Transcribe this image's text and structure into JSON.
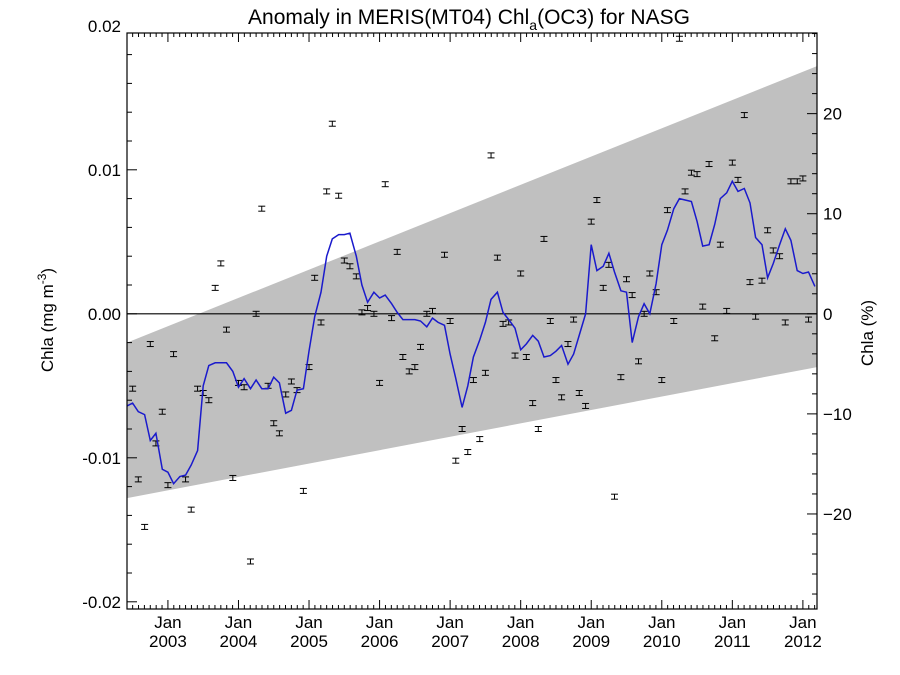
{
  "chart_data": {
    "type": "line",
    "title_main": "Anomaly in MERIS(MT04) Chl",
    "title_sub": "a",
    "title_tail": "(OC3) for NASG",
    "ylabel_left_main": "Chla (mg m",
    "ylabel_left_sup": "-3",
    "ylabel_left_close": ")",
    "ylabel_right": "Chla (%)",
    "x_ticks": [
      {
        "month": "Jan",
        "year": "2003",
        "t": 2003.0
      },
      {
        "month": "Jan",
        "year": "2004",
        "t": 2004.0
      },
      {
        "month": "Jan",
        "year": "2005",
        "t": 2005.0
      },
      {
        "month": "Jan",
        "year": "2006",
        "t": 2006.0
      },
      {
        "month": "Jan",
        "year": "2007",
        "t": 2007.0
      },
      {
        "month": "Jan",
        "year": "2008",
        "t": 2008.0
      },
      {
        "month": "Jan",
        "year": "2009",
        "t": 2009.0
      },
      {
        "month": "Jan",
        "year": "2010",
        "t": 2010.0
      },
      {
        "month": "Jan",
        "year": "2011",
        "t": 2011.0
      },
      {
        "month": "Jan",
        "year": "2012",
        "t": 2012.0
      }
    ],
    "xlim": [
      2002.42,
      2012.2
    ],
    "ylim": [
      -0.0205,
      0.0195
    ],
    "y_ticks_left": [
      {
        "label": "0.02",
        "v": 0.02
      },
      {
        "label": "0.01",
        "v": 0.01
      },
      {
        "label": "0.00",
        "v": 0.0
      },
      {
        "label": "-0.01",
        "v": -0.01
      },
      {
        "label": "-0.02",
        "v": -0.02
      }
    ],
    "y_ticks_right": [
      {
        "label": "20",
        "v": 0.0139
      },
      {
        "label": "10",
        "v": 0.00695
      },
      {
        "label": "0",
        "v": 0.0
      },
      {
        "label": "−10",
        "v": -0.00695
      },
      {
        "label": "−20",
        "v": -0.0139
      }
    ],
    "zero_line": 0.0,
    "trend_band": {
      "start": {
        "t": 2002.42,
        "upper": -0.002,
        "lower": -0.0128
      },
      "end": {
        "t": 2012.2,
        "upper": 0.0172,
        "lower": -0.0037
      },
      "color": "#c0c0c0"
    },
    "series": [
      {
        "color": "#1a1acc",
        "points": [
          [
            2002.42,
            -0.0064
          ],
          [
            2002.5,
            -0.0062
          ],
          [
            2002.58,
            -0.0068
          ],
          [
            2002.67,
            -0.007
          ],
          [
            2002.75,
            -0.0088
          ],
          [
            2002.83,
            -0.0083
          ],
          [
            2002.92,
            -0.0108
          ],
          [
            2003.0,
            -0.011
          ],
          [
            2003.08,
            -0.0118
          ],
          [
            2003.17,
            -0.0113
          ],
          [
            2003.25,
            -0.0112
          ],
          [
            2003.33,
            -0.0105
          ],
          [
            2003.42,
            -0.0095
          ],
          [
            2003.5,
            -0.005
          ],
          [
            2003.58,
            -0.0036
          ],
          [
            2003.67,
            -0.0034
          ],
          [
            2003.75,
            -0.0034
          ],
          [
            2003.83,
            -0.0034
          ],
          [
            2003.92,
            -0.004
          ],
          [
            2004.0,
            -0.0051
          ],
          [
            2004.08,
            -0.0045
          ],
          [
            2004.17,
            -0.0052
          ],
          [
            2004.25,
            -0.0046
          ],
          [
            2004.33,
            -0.0052
          ],
          [
            2004.42,
            -0.0052
          ],
          [
            2004.5,
            -0.0044
          ],
          [
            2004.58,
            -0.0048
          ],
          [
            2004.67,
            -0.0069
          ],
          [
            2004.75,
            -0.0067
          ],
          [
            2004.83,
            -0.0053
          ],
          [
            2004.92,
            -0.0052
          ],
          [
            2005.0,
            -0.0026
          ],
          [
            2005.08,
            -0.0002
          ],
          [
            2005.17,
            0.0015
          ],
          [
            2005.25,
            0.004
          ],
          [
            2005.33,
            0.0052
          ],
          [
            2005.42,
            0.0055
          ],
          [
            2005.5,
            0.0055
          ],
          [
            2005.58,
            0.0056
          ],
          [
            2005.67,
            0.004
          ],
          [
            2005.75,
            0.002
          ],
          [
            2005.83,
            0.0008
          ],
          [
            2005.92,
            0.0015
          ],
          [
            2006.0,
            0.0011
          ],
          [
            2006.08,
            0.0013
          ],
          [
            2006.17,
            0.0007
          ],
          [
            2006.25,
            0.0001
          ],
          [
            2006.33,
            -0.0004
          ],
          [
            2006.42,
            -0.0004
          ],
          [
            2006.5,
            -0.0004
          ],
          [
            2006.58,
            -0.0005
          ],
          [
            2006.67,
            -0.0009
          ],
          [
            2006.75,
            -0.0003
          ],
          [
            2006.83,
            -0.0006
          ],
          [
            2006.92,
            -0.0008
          ],
          [
            2007.0,
            -0.0028
          ],
          [
            2007.08,
            -0.0045
          ],
          [
            2007.17,
            -0.0065
          ],
          [
            2007.25,
            -0.005
          ],
          [
            2007.33,
            -0.003
          ],
          [
            2007.42,
            -0.0018
          ],
          [
            2007.5,
            -0.0006
          ],
          [
            2007.58,
            0.001
          ],
          [
            2007.67,
            0.0015
          ],
          [
            2007.75,
            0.0001
          ],
          [
            2007.83,
            -0.0004
          ],
          [
            2007.92,
            -0.001
          ],
          [
            2008.0,
            -0.0025
          ],
          [
            2008.08,
            -0.0021
          ],
          [
            2008.17,
            -0.0015
          ],
          [
            2008.25,
            -0.0019
          ],
          [
            2008.33,
            -0.003
          ],
          [
            2008.42,
            -0.0029
          ],
          [
            2008.5,
            -0.0026
          ],
          [
            2008.58,
            -0.0022
          ],
          [
            2008.67,
            -0.0035
          ],
          [
            2008.75,
            -0.0028
          ],
          [
            2008.83,
            -0.0015
          ],
          [
            2008.92,
            0.0
          ],
          [
            2009.0,
            0.0048
          ],
          [
            2009.08,
            0.003
          ],
          [
            2009.17,
            0.0033
          ],
          [
            2009.25,
            0.0042
          ],
          [
            2009.33,
            0.0029
          ],
          [
            2009.42,
            0.0016
          ],
          [
            2009.5,
            0.0015
          ],
          [
            2009.58,
            -0.002
          ],
          [
            2009.67,
            -0.0002
          ],
          [
            2009.75,
            0.0007
          ],
          [
            2009.83,
            0.0
          ],
          [
            2009.92,
            0.0021
          ],
          [
            2010.0,
            0.0048
          ],
          [
            2010.08,
            0.0058
          ],
          [
            2010.17,
            0.0073
          ],
          [
            2010.25,
            0.008
          ],
          [
            2010.33,
            0.0079
          ],
          [
            2010.42,
            0.0078
          ],
          [
            2010.5,
            0.0064
          ],
          [
            2010.58,
            0.0047
          ],
          [
            2010.67,
            0.0048
          ],
          [
            2010.75,
            0.0062
          ],
          [
            2010.83,
            0.008
          ],
          [
            2010.92,
            0.0084
          ],
          [
            2011.0,
            0.0092
          ],
          [
            2011.08,
            0.0085
          ],
          [
            2011.17,
            0.0087
          ],
          [
            2011.25,
            0.0077
          ],
          [
            2011.33,
            0.0053
          ],
          [
            2011.42,
            0.0048
          ],
          [
            2011.5,
            0.0025
          ],
          [
            2011.58,
            0.0035
          ],
          [
            2011.67,
            0.0048
          ],
          [
            2011.75,
            0.0059
          ],
          [
            2011.83,
            0.0051
          ],
          [
            2011.92,
            0.003
          ],
          [
            2012.0,
            0.0028
          ],
          [
            2012.08,
            0.0029
          ],
          [
            2012.17,
            0.0019
          ]
        ]
      }
    ],
    "error_points": [
      [
        2002.5,
        -0.0052
      ],
      [
        2002.58,
        -0.0115
      ],
      [
        2002.67,
        -0.0148
      ],
      [
        2002.75,
        -0.0021
      ],
      [
        2002.83,
        -0.009
      ],
      [
        2002.92,
        -0.0068
      ],
      [
        2003.0,
        -0.0119
      ],
      [
        2003.08,
        -0.0028
      ],
      [
        2003.25,
        -0.0115
      ],
      [
        2003.33,
        -0.0136
      ],
      [
        2003.42,
        -0.0052
      ],
      [
        2003.5,
        -0.0055
      ],
      [
        2003.58,
        -0.006
      ],
      [
        2003.67,
        0.0018
      ],
      [
        2003.75,
        0.0035
      ],
      [
        2003.83,
        -0.0011
      ],
      [
        2003.92,
        -0.0114
      ],
      [
        2004.0,
        -0.0048
      ],
      [
        2004.08,
        -0.0051
      ],
      [
        2004.17,
        -0.0172
      ],
      [
        2004.25,
        0.0
      ],
      [
        2004.33,
        0.0073
      ],
      [
        2004.42,
        -0.005
      ],
      [
        2004.5,
        -0.0076
      ],
      [
        2004.58,
        -0.0083
      ],
      [
        2004.67,
        -0.0056
      ],
      [
        2004.75,
        -0.0047
      ],
      [
        2004.83,
        -0.0053
      ],
      [
        2004.92,
        -0.0123
      ],
      [
        2005.0,
        -0.0037
      ],
      [
        2005.08,
        0.0025
      ],
      [
        2005.17,
        -0.0006
      ],
      [
        2005.25,
        0.0085
      ],
      [
        2005.33,
        0.0132
      ],
      [
        2005.42,
        0.0082
      ],
      [
        2005.5,
        0.0037
      ],
      [
        2005.58,
        0.0033
      ],
      [
        2005.67,
        0.0026
      ],
      [
        2005.75,
        0.0001
      ],
      [
        2005.83,
        0.0004
      ],
      [
        2005.92,
        0.0
      ],
      [
        2006.0,
        -0.0048
      ],
      [
        2006.08,
        0.009
      ],
      [
        2006.17,
        -0.0003
      ],
      [
        2006.25,
        0.0043
      ],
      [
        2006.33,
        -0.003
      ],
      [
        2006.42,
        -0.004
      ],
      [
        2006.5,
        -0.0037
      ],
      [
        2006.58,
        -0.0023
      ],
      [
        2006.67,
        0.0
      ],
      [
        2006.75,
        0.0002
      ],
      [
        2006.92,
        0.0041
      ],
      [
        2007.0,
        -0.0005
      ],
      [
        2007.08,
        -0.0102
      ],
      [
        2007.17,
        -0.008
      ],
      [
        2007.25,
        -0.0096
      ],
      [
        2007.33,
        -0.0046
      ],
      [
        2007.42,
        -0.0087
      ],
      [
        2007.5,
        -0.0041
      ],
      [
        2007.58,
        0.011
      ],
      [
        2007.67,
        0.0039
      ],
      [
        2007.75,
        -0.0007
      ],
      [
        2007.83,
        -0.0006
      ],
      [
        2007.92,
        -0.0029
      ],
      [
        2008.0,
        0.0028
      ],
      [
        2008.08,
        -0.003
      ],
      [
        2008.17,
        -0.0062
      ],
      [
        2008.25,
        -0.008
      ],
      [
        2008.33,
        0.0052
      ],
      [
        2008.42,
        -0.0005
      ],
      [
        2008.5,
        -0.0046
      ],
      [
        2008.58,
        -0.0058
      ],
      [
        2008.67,
        -0.0021
      ],
      [
        2008.75,
        -0.0004
      ],
      [
        2008.83,
        -0.0055
      ],
      [
        2008.92,
        -0.0064
      ],
      [
        2009.0,
        0.0064
      ],
      [
        2009.08,
        0.0079
      ],
      [
        2009.17,
        0.0018
      ],
      [
        2009.25,
        0.0034
      ],
      [
        2009.33,
        -0.0127
      ],
      [
        2009.42,
        -0.0044
      ],
      [
        2009.5,
        0.0024
      ],
      [
        2009.58,
        0.0013
      ],
      [
        2009.67,
        -0.0033
      ],
      [
        2009.75,
        0.0
      ],
      [
        2009.83,
        0.0028
      ],
      [
        2009.92,
        0.0015
      ],
      [
        2010.0,
        -0.0046
      ],
      [
        2010.08,
        0.0072
      ],
      [
        2010.17,
        -0.0005
      ],
      [
        2010.25,
        0.0191
      ],
      [
        2010.33,
        0.0085
      ],
      [
        2010.42,
        0.0098
      ],
      [
        2010.5,
        0.0097
      ],
      [
        2010.58,
        0.0005
      ],
      [
        2010.67,
        0.0104
      ],
      [
        2010.75,
        -0.0017
      ],
      [
        2010.83,
        0.0048
      ],
      [
        2010.92,
        0.0002
      ],
      [
        2011.0,
        0.0105
      ],
      [
        2011.08,
        0.0093
      ],
      [
        2011.17,
        0.0138
      ],
      [
        2011.25,
        0.0022
      ],
      [
        2011.33,
        -0.0002
      ],
      [
        2011.42,
        0.0023
      ],
      [
        2011.5,
        0.0058
      ],
      [
        2011.58,
        0.0044
      ],
      [
        2011.67,
        0.004
      ],
      [
        2011.75,
        -0.0006
      ],
      [
        2011.83,
        0.0092
      ],
      [
        2011.92,
        0.0092
      ],
      [
        2012.0,
        0.0094
      ],
      [
        2012.08,
        -0.0004
      ]
    ]
  }
}
